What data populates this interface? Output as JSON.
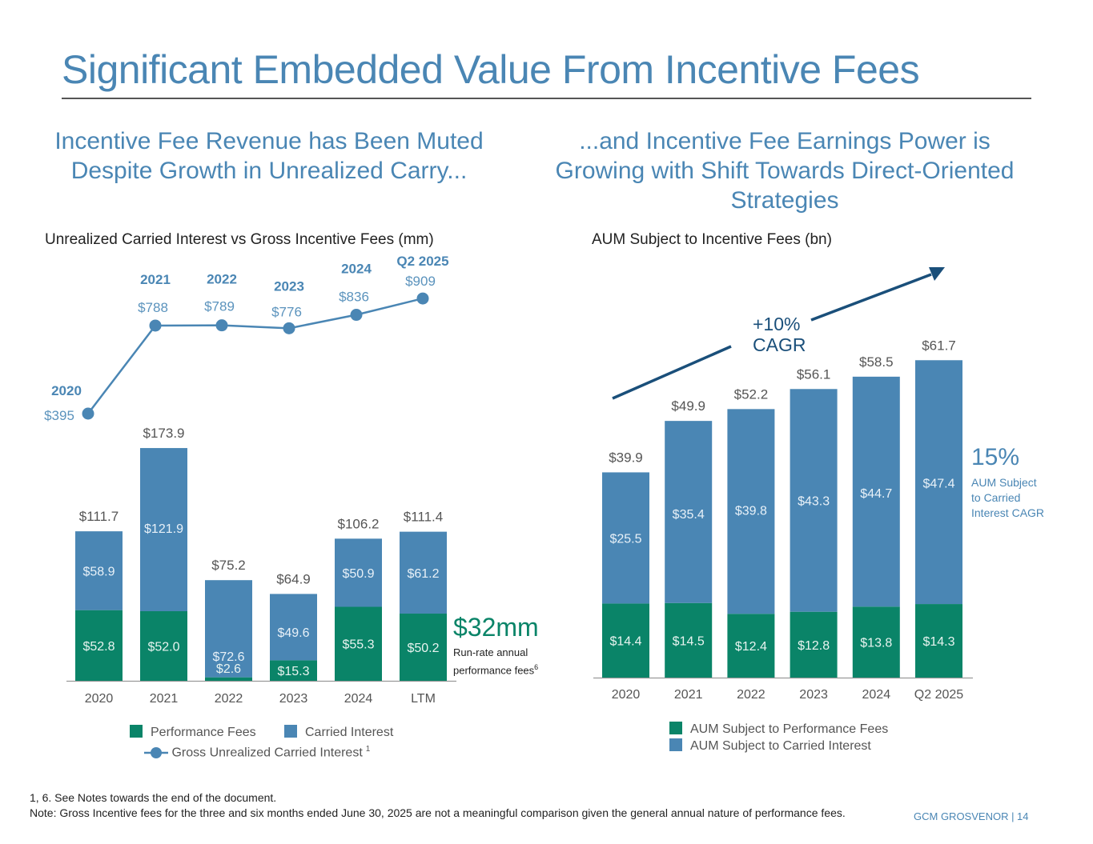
{
  "page": {
    "title": "Significant Embedded Value From Incentive Fees",
    "left_subhead": "Incentive Fee Revenue has Been Muted Despite Growth in Unrealized Carry...",
    "right_subhead": "...and Incentive Fee Earnings Power is Growing with Shift Towards Direct-Oriented Strategies",
    "footnote_1": "1, 6. See Notes towards the end of the document.",
    "footnote_2": "Note: Gross Incentive fees for the three and six months ended June 30, 2025 are not a meaningful comparison given the general annual nature of performance fees.",
    "footer_brand": "GCM GROSVENOR | 14"
  },
  "colors": {
    "title_blue": "#4a86b4",
    "carried_interest": "#4a86b4",
    "performance_fees": "#0a8468",
    "arrow": "#1a4f7a"
  },
  "callouts": {
    "run_rate_value": "$32mm",
    "run_rate_label_line1": "Run-rate annual",
    "run_rate_label_line2": "performance fees",
    "run_rate_sup": "6",
    "carried_cagr_value": "15%",
    "carried_cagr_label_line1": "AUM Subject",
    "carried_cagr_label_line2": "to Carried",
    "carried_cagr_label_line3": "Interest CAGR",
    "aum_cagr_line1": "+10%",
    "aum_cagr_line2": "CAGR"
  },
  "legends": {
    "left_performance": "Performance Fees",
    "left_carried": "Carried Interest",
    "left_line": "Gross Unrealized Carried Interest",
    "left_line_sup": "1",
    "right_performance": "AUM Subject to Performance Fees",
    "right_carried": "AUM Subject to Carried Interest"
  },
  "chart_data": [
    {
      "type": "bar",
      "stacked": true,
      "title": "Unrealized Carried Interest vs Gross Incentive Fees (mm)",
      "categories": [
        "2020",
        "2021",
        "2022",
        "2023",
        "2024",
        "LTM"
      ],
      "series": [
        {
          "name": "Performance Fees",
          "values": [
            52.8,
            52.0,
            2.6,
            15.3,
            55.3,
            50.2
          ],
          "labels": [
            "$52.8",
            "$52.0",
            "$2.6",
            "$15.3",
            "$55.3",
            "$50.2"
          ]
        },
        {
          "name": "Carried Interest",
          "values": [
            58.9,
            121.9,
            72.6,
            49.6,
            50.9,
            61.2
          ],
          "labels": [
            "$58.9",
            "$121.9",
            "$72.6",
            "$49.6",
            "$50.9",
            "$61.2"
          ]
        }
      ],
      "totals": [
        111.7,
        173.9,
        75.2,
        64.9,
        106.2,
        111.4
      ],
      "total_labels": [
        "$111.7",
        "$173.9",
        "$75.2",
        "$64.9",
        "$106.2",
        "$111.4"
      ],
      "xlabel": "",
      "ylabel": "",
      "ylim": [
        0,
        180
      ],
      "grid": false,
      "legend": "bottom"
    },
    {
      "type": "line",
      "title": "Gross Unrealized Carried Interest",
      "x": [
        "2020",
        "2021",
        "2022",
        "2023",
        "2024",
        "Q2 2025"
      ],
      "values": [
        395,
        788,
        789,
        776,
        836,
        909
      ],
      "labels": [
        "$395",
        "$788",
        "$789",
        "$776",
        "$836",
        "$909"
      ],
      "ylim": [
        395,
        909
      ],
      "grid": false
    },
    {
      "type": "bar",
      "stacked": true,
      "title": "AUM Subject to Incentive Fees (bn)",
      "categories": [
        "2020",
        "2021",
        "2022",
        "2023",
        "2024",
        "Q2 2025"
      ],
      "series": [
        {
          "name": "AUM Subject to Performance Fees",
          "values": [
            14.4,
            14.5,
            12.4,
            12.8,
            13.8,
            14.3
          ],
          "labels": [
            "$14.4",
            "$14.5",
            "$12.4",
            "$12.8",
            "$13.8",
            "$14.3"
          ]
        },
        {
          "name": "AUM Subject to Carried Interest",
          "values": [
            25.5,
            35.4,
            39.8,
            43.3,
            44.7,
            47.4
          ],
          "labels": [
            "$25.5",
            "$35.4",
            "$39.8",
            "$43.3",
            "$44.7",
            "$47.4"
          ]
        }
      ],
      "totals": [
        39.9,
        49.9,
        52.2,
        56.1,
        58.5,
        61.7
      ],
      "total_labels": [
        "$39.9",
        "$49.9",
        "$52.2",
        "$56.1",
        "$58.5",
        "$61.7"
      ],
      "xlabel": "",
      "ylabel": "",
      "ylim": [
        0,
        65
      ],
      "grid": false,
      "legend": "bottom",
      "annotation": "+10% CAGR"
    }
  ]
}
